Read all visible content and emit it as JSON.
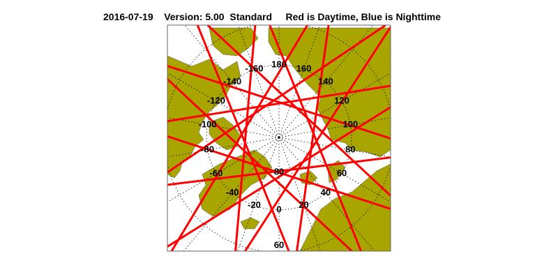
{
  "header": {
    "date": "2016-07-19",
    "version": "Version: 5.00",
    "mode": "Standard",
    "legend": "Red is Daytime, Blue is Nighttime"
  },
  "map": {
    "projection": "north polar stereographic",
    "colors": {
      "land": "#A8A400",
      "ocean": "#FFFFFF",
      "daytime": "#FF0000",
      "nighttime": "#0000FF",
      "grid": "#000000"
    },
    "longitude_labels": [
      "180",
      "160",
      "140",
      "120",
      "100",
      "80",
      "60",
      "40",
      "20",
      "0",
      "-20",
      "-40",
      "-60",
      "-80",
      "-100",
      "-120",
      "-140",
      "-160"
    ],
    "latitude_labels": [
      "80",
      "60"
    ]
  }
}
